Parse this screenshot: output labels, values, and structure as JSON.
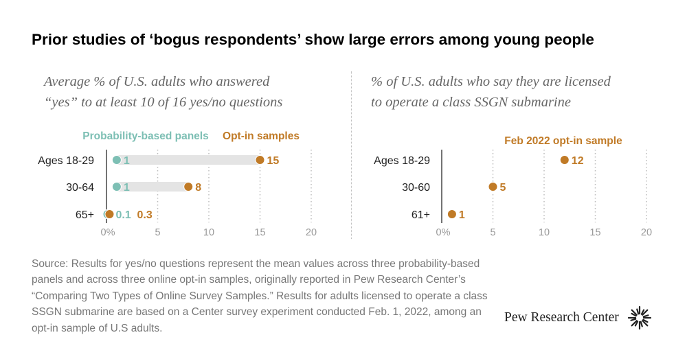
{
  "title": "Prior studies of ‘bogus respondents’ show large errors among young people",
  "left_subtitle_line1": "Average % of U.S. adults who answered",
  "left_subtitle_line2": "“yes” to at least 10 of 16 yes/no questions",
  "right_subtitle_line1": "% of U.S. adults who say they are licensed",
  "right_subtitle_line2": "to operate a class SSGN submarine",
  "source": "Source: Results for yes/no questions represent the mean values across three probability-based panels and across three online opt-in samples, originally reported in Pew Research Center’s “Comparing Two Types of Online Survey Samples.” Results for adults licensed to operate a class SSGN submarine are based on a Center survey experiment conducted Feb. 1, 2022, among an opt-in sample of U.S adults.",
  "logo_text": "Pew Research Center",
  "colors": {
    "probability": "#7dbfb4",
    "optin": "#c07a26",
    "range_bar": "#e4e4e4",
    "axis": "#444444",
    "grid": "#bbbbbb",
    "tick": "#999999"
  },
  "chart_data": [
    {
      "type": "dot",
      "legend": [
        "Probability-based panels",
        "Opt-in samples"
      ],
      "categories": [
        "Ages 18-29",
        "30-64",
        "65+"
      ],
      "series": [
        {
          "name": "Probability-based panels",
          "values": [
            1,
            1,
            0.1
          ],
          "labels": [
            "1",
            "1",
            "0.1"
          ]
        },
        {
          "name": "Opt-in samples",
          "values": [
            15,
            8,
            0.3
          ],
          "labels": [
            "15",
            "8",
            "0.3"
          ]
        }
      ],
      "xticks": [
        "0%",
        "5",
        "10",
        "15",
        "20"
      ],
      "xtick_values": [
        0,
        5,
        10,
        15,
        20
      ],
      "xlim": [
        0,
        20
      ],
      "grid": true
    },
    {
      "type": "dot",
      "legend": [
        "Feb 2022 opt-in sample"
      ],
      "categories": [
        "Ages 18-29",
        "30-60",
        "61+"
      ],
      "series": [
        {
          "name": "Feb 2022 opt-in sample",
          "values": [
            12,
            5,
            1
          ],
          "labels": [
            "12",
            "5",
            "1"
          ]
        }
      ],
      "xticks": [
        "0%",
        "5",
        "10",
        "15",
        "20"
      ],
      "xtick_values": [
        0,
        5,
        10,
        15,
        20
      ],
      "xlim": [
        0,
        20
      ],
      "grid": true
    }
  ]
}
